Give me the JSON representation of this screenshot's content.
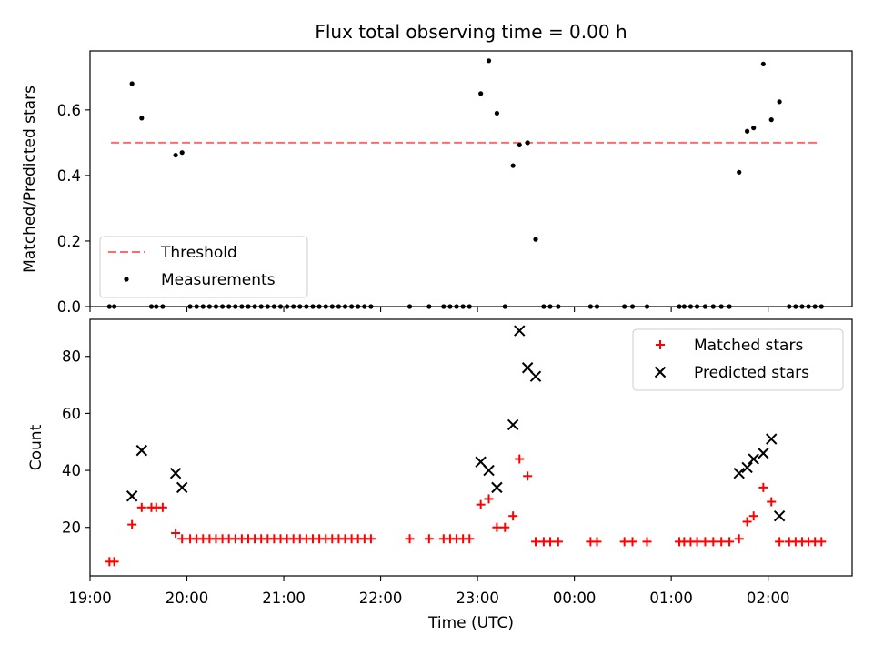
{
  "chart_data": {
    "title": "Flux total observing time = 0.00 h",
    "xlabel": "Time (UTC)",
    "x_axis": {
      "min": "19:00",
      "max": "02:52",
      "ticks": [
        "19:00",
        "20:00",
        "21:00",
        "22:00",
        "23:00",
        "00:00",
        "01:00",
        "02:00"
      ]
    },
    "panels": [
      {
        "type": "scatter",
        "ylabel": "Matched/Predicted stars",
        "ylim": [
          0,
          0.78
        ],
        "yticks": [
          "0.0",
          "0.2",
          "0.4",
          "0.6"
        ],
        "legend_position": "lower-left",
        "threshold": {
          "name": "Threshold",
          "value": 0.5,
          "from": "19:13",
          "to": "02:31",
          "color": "#ff6b6b"
        },
        "series": [
          {
            "name": "Measurements",
            "marker": "dot",
            "color": "#000000",
            "points": [
              [
                "19:12",
                0
              ],
              [
                "19:15",
                0
              ],
              [
                "19:26",
                0.68
              ],
              [
                "19:32",
                0.575
              ],
              [
                "19:38",
                0
              ],
              [
                "19:41",
                0
              ],
              [
                "19:45",
                0
              ],
              [
                "19:53",
                0.462
              ],
              [
                "19:57",
                0.47
              ],
              [
                "20:02",
                0
              ],
              [
                "20:06",
                0
              ],
              [
                "20:10",
                0
              ],
              [
                "20:14",
                0
              ],
              [
                "20:18",
                0
              ],
              [
                "20:22",
                0
              ],
              [
                "20:26",
                0
              ],
              [
                "20:30",
                0
              ],
              [
                "20:34",
                0
              ],
              [
                "20:38",
                0
              ],
              [
                "20:42",
                0
              ],
              [
                "20:46",
                0
              ],
              [
                "20:50",
                0
              ],
              [
                "20:54",
                0
              ],
              [
                "20:58",
                0
              ],
              [
                "21:02",
                0
              ],
              [
                "21:06",
                0
              ],
              [
                "21:10",
                0
              ],
              [
                "21:14",
                0
              ],
              [
                "21:18",
                0
              ],
              [
                "21:22",
                0
              ],
              [
                "21:26",
                0
              ],
              [
                "21:30",
                0
              ],
              [
                "21:34",
                0
              ],
              [
                "21:38",
                0
              ],
              [
                "21:42",
                0
              ],
              [
                "21:46",
                0
              ],
              [
                "21:50",
                0
              ],
              [
                "21:54",
                0
              ],
              [
                "22:18",
                0
              ],
              [
                "22:30",
                0
              ],
              [
                "22:39",
                0
              ],
              [
                "22:43",
                0
              ],
              [
                "22:47",
                0
              ],
              [
                "22:51",
                0
              ],
              [
                "22:55",
                0
              ],
              [
                "23:02",
                0.65
              ],
              [
                "23:07",
                0.75
              ],
              [
                "23:12",
                0.59
              ],
              [
                "23:17",
                0
              ],
              [
                "23:22",
                0.43
              ],
              [
                "23:26",
                0.493
              ],
              [
                "23:31",
                0.5
              ],
              [
                "23:36",
                0.205
              ],
              [
                "23:41",
                0
              ],
              [
                "23:45",
                0
              ],
              [
                "23:50",
                0
              ],
              [
                "00:10",
                0
              ],
              [
                "00:14",
                0
              ],
              [
                "00:31",
                0
              ],
              [
                "00:36",
                0
              ],
              [
                "00:45",
                0
              ],
              [
                "01:05",
                0
              ],
              [
                "01:08",
                0
              ],
              [
                "01:12",
                0
              ],
              [
                "01:16",
                0
              ],
              [
                "01:21",
                0
              ],
              [
                "01:26",
                0
              ],
              [
                "01:31",
                0
              ],
              [
                "01:36",
                0
              ],
              [
                "01:42",
                0.41
              ],
              [
                "01:47",
                0.535
              ],
              [
                "01:51",
                0.545
              ],
              [
                "01:57",
                0.74
              ],
              [
                "02:02",
                0.57
              ],
              [
                "02:07",
                0.625
              ],
              [
                "02:13",
                0
              ],
              [
                "02:17",
                0
              ],
              [
                "02:21",
                0
              ],
              [
                "02:25",
                0
              ],
              [
                "02:29",
                0
              ],
              [
                "02:33",
                0
              ]
            ]
          }
        ]
      },
      {
        "type": "scatter",
        "ylabel": "Count",
        "ylim": [
          3,
          93
        ],
        "yticks": [
          "20",
          "40",
          "60",
          "80"
        ],
        "legend_position": "upper-right",
        "series": [
          {
            "name": "Matched stars",
            "marker": "plus",
            "color": "#ff0000",
            "points": [
              [
                "19:12",
                8
              ],
              [
                "19:15",
                8
              ],
              [
                "19:26",
                21
              ],
              [
                "19:32",
                27
              ],
              [
                "19:38",
                27
              ],
              [
                "19:41",
                27
              ],
              [
                "19:45",
                27
              ],
              [
                "19:53",
                18
              ],
              [
                "19:57",
                16
              ],
              [
                "20:02",
                16
              ],
              [
                "20:06",
                16
              ],
              [
                "20:10",
                16
              ],
              [
                "20:14",
                16
              ],
              [
                "20:18",
                16
              ],
              [
                "20:22",
                16
              ],
              [
                "20:26",
                16
              ],
              [
                "20:30",
                16
              ],
              [
                "20:34",
                16
              ],
              [
                "20:38",
                16
              ],
              [
                "20:42",
                16
              ],
              [
                "20:46",
                16
              ],
              [
                "20:50",
                16
              ],
              [
                "20:54",
                16
              ],
              [
                "20:58",
                16
              ],
              [
                "21:02",
                16
              ],
              [
                "21:06",
                16
              ],
              [
                "21:10",
                16
              ],
              [
                "21:14",
                16
              ],
              [
                "21:18",
                16
              ],
              [
                "21:22",
                16
              ],
              [
                "21:26",
                16
              ],
              [
                "21:30",
                16
              ],
              [
                "21:34",
                16
              ],
              [
                "21:38",
                16
              ],
              [
                "21:42",
                16
              ],
              [
                "21:46",
                16
              ],
              [
                "21:50",
                16
              ],
              [
                "21:54",
                16
              ],
              [
                "22:18",
                16
              ],
              [
                "22:30",
                16
              ],
              [
                "22:39",
                16
              ],
              [
                "22:43",
                16
              ],
              [
                "22:47",
                16
              ],
              [
                "22:51",
                16
              ],
              [
                "22:55",
                16
              ],
              [
                "23:02",
                28
              ],
              [
                "23:07",
                30
              ],
              [
                "23:12",
                20
              ],
              [
                "23:17",
                20
              ],
              [
                "23:22",
                24
              ],
              [
                "23:26",
                44
              ],
              [
                "23:31",
                38
              ],
              [
                "23:36",
                15
              ],
              [
                "23:41",
                15
              ],
              [
                "23:45",
                15
              ],
              [
                "23:50",
                15
              ],
              [
                "00:10",
                15
              ],
              [
                "00:14",
                15
              ],
              [
                "00:31",
                15
              ],
              [
                "00:36",
                15
              ],
              [
                "00:45",
                15
              ],
              [
                "01:05",
                15
              ],
              [
                "01:08",
                15
              ],
              [
                "01:12",
                15
              ],
              [
                "01:16",
                15
              ],
              [
                "01:21",
                15
              ],
              [
                "01:26",
                15
              ],
              [
                "01:31",
                15
              ],
              [
                "01:36",
                15
              ],
              [
                "01:42",
                16
              ],
              [
                "01:47",
                22
              ],
              [
                "01:51",
                24
              ],
              [
                "01:57",
                34
              ],
              [
                "02:02",
                29
              ],
              [
                "02:07",
                15
              ],
              [
                "02:13",
                15
              ],
              [
                "02:17",
                15
              ],
              [
                "02:21",
                15
              ],
              [
                "02:25",
                15
              ],
              [
                "02:29",
                15
              ],
              [
                "02:33",
                15
              ]
            ]
          },
          {
            "name": "Predicted stars",
            "marker": "x",
            "color": "#000000",
            "points": [
              [
                "19:26",
                31
              ],
              [
                "19:32",
                47
              ],
              [
                "19:53",
                39
              ],
              [
                "19:57",
                34
              ],
              [
                "23:02",
                43
              ],
              [
                "23:07",
                40
              ],
              [
                "23:12",
                34
              ],
              [
                "23:22",
                56
              ],
              [
                "23:26",
                89
              ],
              [
                "23:31",
                76
              ],
              [
                "23:36",
                73
              ],
              [
                "01:42",
                39
              ],
              [
                "01:47",
                41
              ],
              [
                "01:51",
                44
              ],
              [
                "01:57",
                46
              ],
              [
                "02:02",
                51
              ],
              [
                "02:07",
                24
              ]
            ]
          }
        ]
      }
    ]
  }
}
